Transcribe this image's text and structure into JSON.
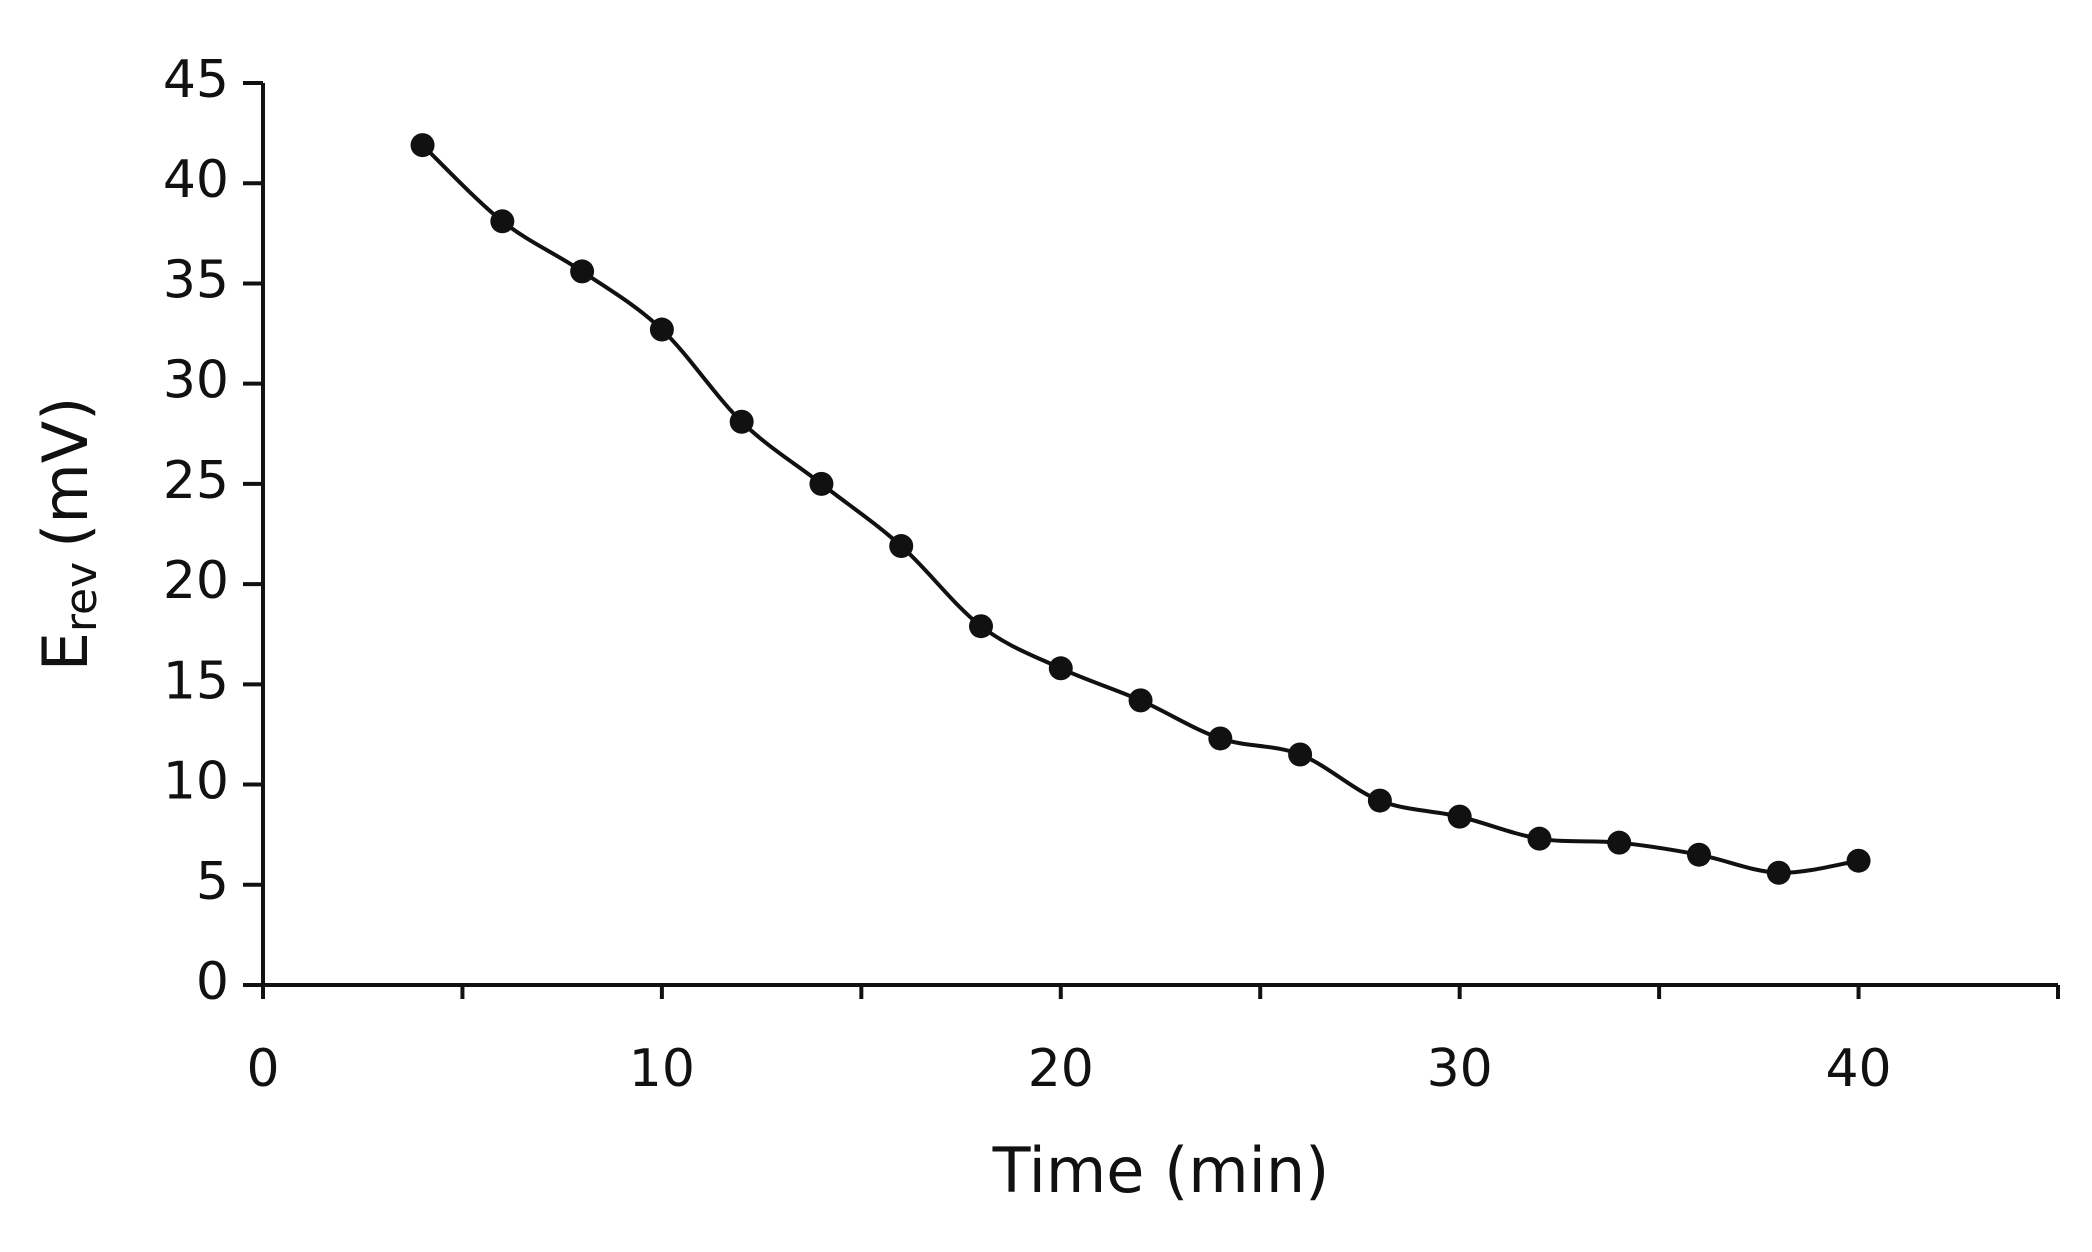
{
  "chart_data": {
    "type": "line",
    "x_label": "Time (min)",
    "y_label": {
      "main": "E",
      "subscript": "rev",
      "unit": "(mV)"
    },
    "x": [
      4,
      6,
      8,
      10,
      12,
      14,
      16,
      18,
      20,
      22,
      24,
      26,
      28,
      30,
      32,
      34,
      36,
      38,
      40
    ],
    "series": [
      {
        "color": "#111111",
        "values": [
          41.9,
          38.1,
          35.6,
          32.7,
          28.1,
          25.0,
          21.9,
          17.9,
          15.8,
          14.2,
          12.3,
          11.5,
          9.2,
          8.4,
          7.3,
          7.1,
          6.5,
          5.6,
          6.2
        ]
      }
    ],
    "markers": true,
    "smooth": true,
    "xlim": [
      0,
      45
    ],
    "xticks": [
      0,
      10,
      20,
      30,
      40
    ],
    "x_minor_ticks": [
      5,
      15,
      25,
      35,
      45
    ],
    "ylim": [
      0,
      45
    ],
    "yticks": [
      0,
      5,
      10,
      15,
      20,
      25,
      30,
      35,
      40,
      45
    ],
    "grid": false
  }
}
